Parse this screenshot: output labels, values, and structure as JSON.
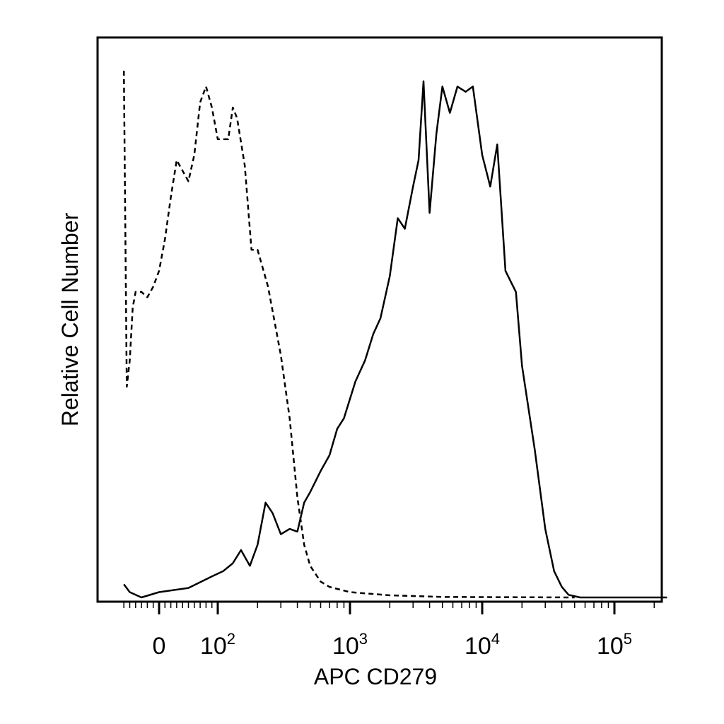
{
  "chart_data": {
    "type": "line",
    "subtype": "flow-cytometry-histogram",
    "title": "",
    "xlabel": "APC CD279",
    "ylabel": "Relative Cell Number",
    "x_scale": "biexponential",
    "xlim": [
      -60,
      250000
    ],
    "ylim": [
      0,
      1
    ],
    "x_ticks": [
      {
        "value": 0,
        "base": "0",
        "exp": ""
      },
      {
        "value": 100,
        "base": "10",
        "exp": "2"
      },
      {
        "value": 1000,
        "base": "10",
        "exp": "3"
      },
      {
        "value": 10000,
        "base": "10",
        "exp": "4"
      },
      {
        "value": 100000,
        "base": "10",
        "exp": "5"
      }
    ],
    "grid": false,
    "legend": "none",
    "colors": {
      "line": "#000000",
      "axis": "#000000",
      "background": "#ffffff"
    },
    "series": [
      {
        "style": "dashed",
        "points": [
          [
            -60,
            1.0
          ],
          [
            -55,
            0.4
          ],
          [
            -50,
            0.45
          ],
          [
            -45,
            0.55
          ],
          [
            -40,
            0.58
          ],
          [
            -30,
            0.58
          ],
          [
            -20,
            0.57
          ],
          [
            -10,
            0.59
          ],
          [
            0,
            0.62
          ],
          [
            10,
            0.68
          ],
          [
            20,
            0.76
          ],
          [
            30,
            0.83
          ],
          [
            40,
            0.81
          ],
          [
            50,
            0.79
          ],
          [
            60,
            0.84
          ],
          [
            70,
            0.94
          ],
          [
            80,
            0.97
          ],
          [
            90,
            0.93
          ],
          [
            100,
            0.87
          ],
          [
            120,
            0.87
          ],
          [
            130,
            0.93
          ],
          [
            140,
            0.91
          ],
          [
            160,
            0.82
          ],
          [
            180,
            0.66
          ],
          [
            200,
            0.66
          ],
          [
            240,
            0.59
          ],
          [
            300,
            0.46
          ],
          [
            350,
            0.34
          ],
          [
            400,
            0.19
          ],
          [
            450,
            0.1
          ],
          [
            500,
            0.06
          ],
          [
            600,
            0.03
          ],
          [
            700,
            0.02
          ],
          [
            1000,
            0.01
          ],
          [
            2000,
            0.004
          ],
          [
            5000,
            0.001
          ],
          [
            50000,
            0.0
          ]
        ]
      },
      {
        "style": "solid",
        "points": [
          [
            -60,
            0.025
          ],
          [
            -50,
            0.01
          ],
          [
            -30,
            0.0
          ],
          [
            0,
            0.01
          ],
          [
            50,
            0.018
          ],
          [
            90,
            0.04
          ],
          [
            110,
            0.05
          ],
          [
            130,
            0.065
          ],
          [
            150,
            0.09
          ],
          [
            175,
            0.06
          ],
          [
            200,
            0.1
          ],
          [
            230,
            0.18
          ],
          [
            260,
            0.16
          ],
          [
            300,
            0.12
          ],
          [
            350,
            0.13
          ],
          [
            400,
            0.125
          ],
          [
            450,
            0.18
          ],
          [
            500,
            0.2
          ],
          [
            600,
            0.24
          ],
          [
            700,
            0.27
          ],
          [
            800,
            0.32
          ],
          [
            900,
            0.34
          ],
          [
            1100,
            0.41
          ],
          [
            1300,
            0.45
          ],
          [
            1500,
            0.5
          ],
          [
            1700,
            0.53
          ],
          [
            2000,
            0.61
          ],
          [
            2300,
            0.72
          ],
          [
            2600,
            0.7
          ],
          [
            3000,
            0.78
          ],
          [
            3300,
            0.83
          ],
          [
            3600,
            0.98
          ],
          [
            4000,
            0.73
          ],
          [
            4500,
            0.88
          ],
          [
            5000,
            0.97
          ],
          [
            5700,
            0.92
          ],
          [
            6500,
            0.97
          ],
          [
            7500,
            0.96
          ],
          [
            8500,
            0.97
          ],
          [
            10000,
            0.84
          ],
          [
            11500,
            0.78
          ],
          [
            13000,
            0.86
          ],
          [
            15000,
            0.62
          ],
          [
            18000,
            0.58
          ],
          [
            20000,
            0.44
          ],
          [
            25000,
            0.28
          ],
          [
            30000,
            0.13
          ],
          [
            35000,
            0.05
          ],
          [
            40000,
            0.02
          ],
          [
            45000,
            0.005
          ],
          [
            55000,
            0.0
          ],
          [
            250000,
            0.0
          ]
        ]
      }
    ]
  }
}
